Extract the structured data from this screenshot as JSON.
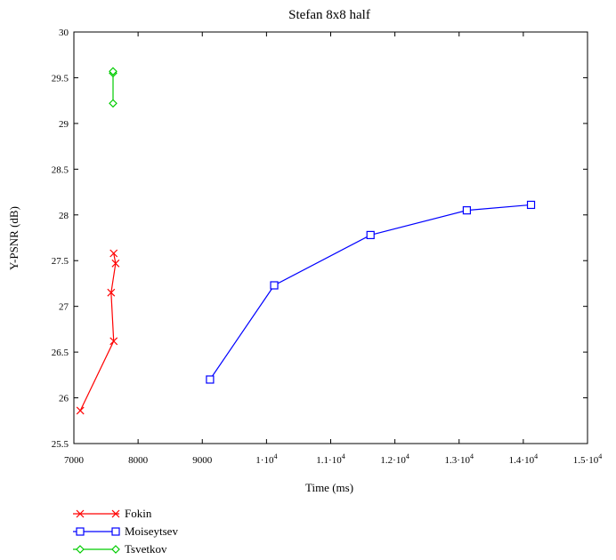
{
  "chart_data": {
    "type": "line",
    "title": "Stefan 8x8 half",
    "xlabel": "Time (ms)",
    "ylabel": "Y-PSNR (dB)",
    "xlim": [
      7000,
      15000
    ],
    "ylim": [
      25.5,
      30
    ],
    "x_ticks": [
      7000,
      8000,
      9000,
      10000,
      11000,
      12000,
      13000,
      14000,
      15000
    ],
    "x_tick_labels": [
      {
        "text": "7000"
      },
      {
        "text": "8000"
      },
      {
        "text": "9000"
      },
      {
        "text": "1·10",
        "sup": "4"
      },
      {
        "text": "1.1·10",
        "sup": "4"
      },
      {
        "text": "1.2·10",
        "sup": "4"
      },
      {
        "text": "1.3·10",
        "sup": "4"
      },
      {
        "text": "1.4·10",
        "sup": "4"
      },
      {
        "text": "1.5·10",
        "sup": "4"
      }
    ],
    "y_ticks": [
      25.5,
      26,
      26.5,
      27,
      27.5,
      28,
      28.5,
      29,
      29.5,
      30
    ],
    "y_tick_labels": [
      "25.5",
      "26",
      "26.5",
      "27",
      "27.5",
      "28",
      "28.5",
      "29",
      "29.5",
      "30"
    ],
    "grid": false,
    "legend_position": "bottom-left, below the plot",
    "series": [
      {
        "name": "Fokin",
        "color": "#ff0000",
        "marker": "x",
        "points": [
          [
            7100,
            25.86
          ],
          [
            7620,
            26.62
          ],
          [
            7580,
            27.15
          ],
          [
            7650,
            27.47
          ],
          [
            7620,
            27.58
          ]
        ]
      },
      {
        "name": "Moiseytsev",
        "color": "#0000ff",
        "marker": "square",
        "points": [
          [
            9120,
            26.2
          ],
          [
            10120,
            27.23
          ],
          [
            11620,
            27.78
          ],
          [
            13120,
            28.05
          ],
          [
            14120,
            28.11
          ]
        ]
      },
      {
        "name": "Tsvetkov",
        "color": "#00cc00",
        "marker": "diamond",
        "points": [
          [
            7610,
            29.22
          ],
          [
            7610,
            29.55
          ],
          [
            7610,
            29.57
          ]
        ]
      }
    ]
  }
}
